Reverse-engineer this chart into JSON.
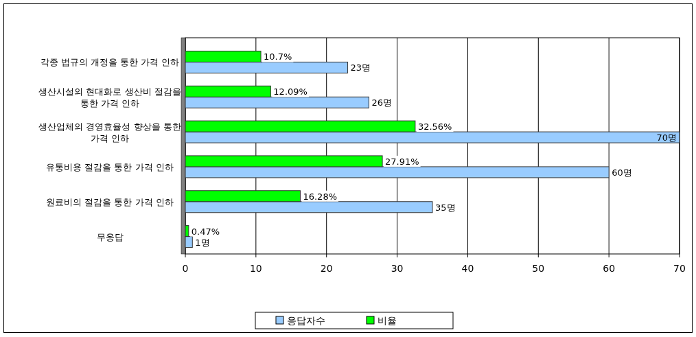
{
  "chart_data": {
    "type": "bar",
    "orientation": "horizontal",
    "categories": [
      "각종 법규의 개정을 통한 가격 인하",
      "생산시설의 현대화로 생산비 절감을 통한 가격 인하",
      "생산업체의 경영효율성 향상을 통한 가격 인하",
      "유통비용 절감을 통한 가격 인하",
      "원료비의 절감을 통한 가격 인하",
      "무응답"
    ],
    "series": [
      {
        "name": "응답자수",
        "color": "#99ccff",
        "values": [
          23,
          26,
          70,
          60,
          35,
          1
        ],
        "value_labels": [
          "23명",
          "26명",
          "70명",
          "60명",
          "35명",
          "1명"
        ]
      },
      {
        "name": "비율",
        "color": "#00ff00",
        "values": [
          10.7,
          12.09,
          32.56,
          27.91,
          16.28,
          0.47
        ],
        "value_labels": [
          "10.7%",
          "12.09%",
          "32.56%",
          "27.91%",
          "16.28%",
          "0.47%"
        ]
      }
    ],
    "xlim": [
      0,
      70
    ],
    "xticks": [
      0,
      10,
      20,
      30,
      40,
      50,
      60,
      70
    ],
    "grid": "x",
    "legend": "bottom"
  }
}
